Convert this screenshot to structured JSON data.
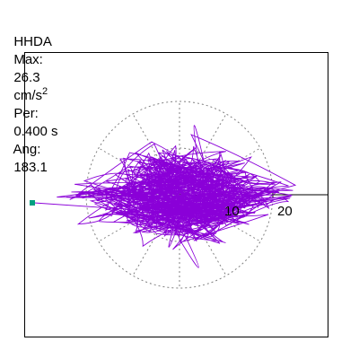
{
  "header": {
    "station": "HHDA",
    "max_label": "Max:",
    "max_value": "26.3",
    "max_unit": "cm/s",
    "max_unit_exp": "2",
    "per_label": "Per:",
    "per_value": "0.400 s",
    "ang_label": "Ang:",
    "ang_value": "183.1"
  },
  "plot": {
    "ticks": [
      "10",
      "20"
    ],
    "colors": {
      "trace": "#8a00d8",
      "grid": "#808080",
      "marker": "#00a080",
      "axis": "#000000"
    },
    "trace_seed": 7
  }
}
